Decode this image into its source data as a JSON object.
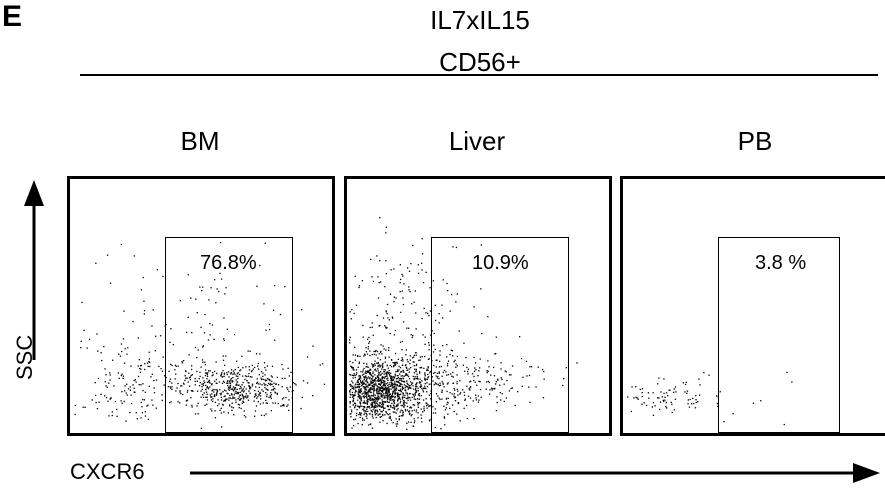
{
  "figure": {
    "panel_letter": "E",
    "title_line1": "IL7xIL15",
    "title_line2": "CD56+",
    "y_axis_label": "SSC",
    "x_axis_label": "CXCR6"
  },
  "panels": [
    {
      "title": "BM",
      "gate_percent": "76.8%"
    },
    {
      "title": "Liver",
      "gate_percent": "10.9%"
    },
    {
      "title": "PB",
      "gate_percent": "3.8 %"
    }
  ]
}
